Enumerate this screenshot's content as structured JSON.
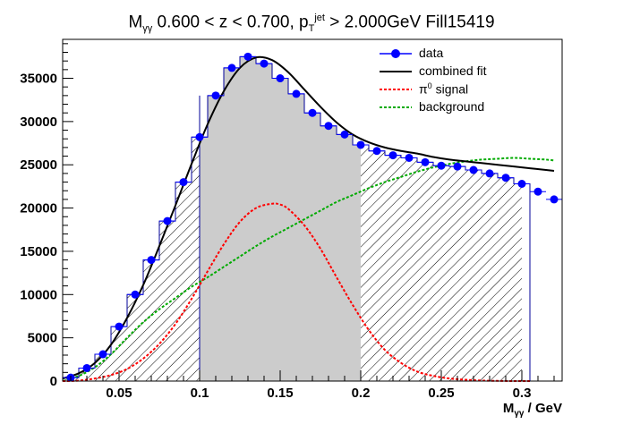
{
  "chart_data": {
    "type": "histogram-fit",
    "title": {
      "prefix": "M",
      "prefix_sub": "γγ",
      "middle": " 0.600 < z < 0.700, p",
      "pt_sub": "T",
      "pt_sup": "jet",
      "suffix": " > 2.000GeV Fill15419"
    },
    "xlabel": {
      "main": "M",
      "sub": "γγ",
      "unit": " / GeV"
    },
    "xlim": [
      0.015,
      0.325
    ],
    "ylim": [
      0,
      39500
    ],
    "xticks": [
      0.05,
      0.1,
      0.15,
      0.2,
      0.25,
      0.3
    ],
    "xtick_labels": [
      "0.05",
      "0.1",
      "0.15",
      "0.2",
      "0.25",
      "0.3"
    ],
    "yticks": [
      0,
      5000,
      10000,
      15000,
      20000,
      25000,
      30000,
      35000
    ],
    "ytick_labels": [
      "0",
      "5000",
      "10000",
      "15000",
      "20000",
      "25000",
      "30000",
      "35000"
    ],
    "bin_width": 0.01,
    "data": {
      "x": [
        0.02,
        0.03,
        0.04,
        0.05,
        0.06,
        0.07,
        0.08,
        0.09,
        0.1,
        0.11,
        0.12,
        0.13,
        0.14,
        0.15,
        0.16,
        0.17,
        0.18,
        0.19,
        0.2,
        0.21,
        0.22,
        0.23,
        0.24,
        0.25,
        0.26,
        0.27,
        0.28,
        0.29,
        0.3,
        0.31,
        0.32
      ],
      "y": [
        400,
        1500,
        3100,
        6300,
        10000,
        14000,
        18500,
        23000,
        28200,
        33000,
        36200,
        37500,
        36700,
        35000,
        33200,
        31000,
        29500,
        28500,
        27300,
        26600,
        26100,
        25800,
        25300,
        24900,
        24800,
        24400,
        24000,
        23500,
        22800,
        21900,
        21000
      ]
    },
    "histogram": {
      "bin_lo": [
        0.015,
        0.025,
        0.035,
        0.045,
        0.055,
        0.065,
        0.075,
        0.085,
        0.095,
        0.105,
        0.115,
        0.125,
        0.135,
        0.145,
        0.155,
        0.165,
        0.175,
        0.185,
        0.195,
        0.205,
        0.215,
        0.225,
        0.235,
        0.245,
        0.255,
        0.265,
        0.275,
        0.285,
        0.295
      ],
      "bin_hi": [
        0.025,
        0.035,
        0.045,
        0.055,
        0.065,
        0.075,
        0.085,
        0.095,
        0.105,
        0.115,
        0.125,
        0.135,
        0.145,
        0.155,
        0.165,
        0.175,
        0.185,
        0.195,
        0.205,
        0.215,
        0.225,
        0.235,
        0.245,
        0.255,
        0.265,
        0.275,
        0.285,
        0.295,
        0.305
      ],
      "counts": [
        400,
        1500,
        3100,
        6300,
        10000,
        14000,
        18500,
        23000,
        28200,
        33000,
        36200,
        37500,
        36700,
        35000,
        33200,
        31000,
        29500,
        28500,
        27300,
        26600,
        26100,
        25800,
        25300,
        24900,
        24800,
        24400,
        24000,
        23500,
        22800
      ],
      "signal_region": [
        0.1,
        0.2
      ],
      "hatch_end": 0.3
    },
    "combined_fit": {
      "x": [
        0.015,
        0.025,
        0.035,
        0.045,
        0.055,
        0.065,
        0.075,
        0.085,
        0.095,
        0.105,
        0.115,
        0.125,
        0.135,
        0.145,
        0.155,
        0.165,
        0.175,
        0.185,
        0.195,
        0.205,
        0.215,
        0.225,
        0.235,
        0.245,
        0.255,
        0.265,
        0.275,
        0.285,
        0.295,
        0.305,
        0.315,
        0.32
      ],
      "y": [
        300,
        900,
        2100,
        4200,
        7300,
        11100,
        15600,
        20300,
        25100,
        29700,
        33500,
        36200,
        37400,
        37100,
        35700,
        33700,
        31700,
        29900,
        28500,
        27600,
        27000,
        26600,
        26300,
        25900,
        25600,
        25400,
        25200,
        25000,
        24800,
        24600,
        24400,
        24300
      ]
    },
    "signal": {
      "x": [
        0.015,
        0.025,
        0.035,
        0.045,
        0.055,
        0.065,
        0.075,
        0.085,
        0.095,
        0.105,
        0.115,
        0.125,
        0.135,
        0.145,
        0.15,
        0.155,
        0.165,
        0.175,
        0.185,
        0.195,
        0.205,
        0.215,
        0.225,
        0.235,
        0.245,
        0.255,
        0.265,
        0.275,
        0.285,
        0.295,
        0.305
      ],
      "y": [
        0,
        50,
        300,
        700,
        1400,
        2600,
        4300,
        6600,
        9500,
        12700,
        15800,
        18400,
        20000,
        20500,
        20400,
        19900,
        18000,
        15300,
        12000,
        8800,
        5900,
        3600,
        2100,
        1100,
        600,
        300,
        150,
        60,
        20,
        0,
        0
      ]
    },
    "background": {
      "x": [
        0.015,
        0.025,
        0.035,
        0.045,
        0.055,
        0.065,
        0.075,
        0.085,
        0.095,
        0.105,
        0.115,
        0.125,
        0.135,
        0.145,
        0.155,
        0.165,
        0.175,
        0.185,
        0.195,
        0.205,
        0.215,
        0.225,
        0.235,
        0.245,
        0.255,
        0.265,
        0.275,
        0.285,
        0.295,
        0.305,
        0.315,
        0.32
      ],
      "y": [
        0,
        600,
        1600,
        3100,
        5000,
        6800,
        8300,
        9600,
        10900,
        12000,
        13200,
        14400,
        15600,
        16700,
        17700,
        18700,
        19700,
        20700,
        21500,
        22300,
        23000,
        23600,
        24200,
        24700,
        25100,
        25400,
        25600,
        25700,
        25800,
        25700,
        25600,
        25500
      ]
    },
    "legend": {
      "data": "data",
      "combined": "combined fit",
      "signal_base": "π",
      "signal_sup": "0",
      "signal_rest": " signal",
      "background": "background"
    },
    "colors": {
      "data": "#0000ff",
      "combined": "#000000",
      "signal": "#ff0000",
      "background": "#00aa00",
      "histogram_line": "#000099",
      "signal_fill": "#cccccc"
    }
  }
}
